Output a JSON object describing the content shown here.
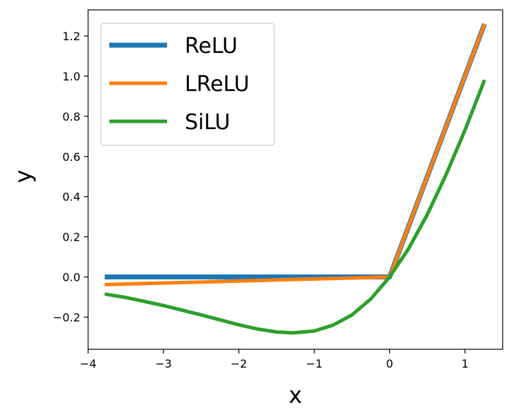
{
  "chart_data": {
    "type": "line",
    "xlabel": "x",
    "ylabel": "y",
    "xlim": [
      -4,
      1.5
    ],
    "ylim": [
      -0.36,
      1.33
    ],
    "x_ticks": [
      -4,
      -3,
      -2,
      -1,
      0,
      1
    ],
    "x_tick_labels": [
      "−4",
      "−3",
      "−2",
      "−1",
      "0",
      "1"
    ],
    "y_ticks": [
      -0.2,
      0.0,
      0.2,
      0.4,
      0.6,
      0.8,
      1.0,
      1.2
    ],
    "y_tick_labels": [
      "−0.2",
      "0.0",
      "0.2",
      "0.4",
      "0.6",
      "0.8",
      "1.0",
      "1.2"
    ],
    "grid": false,
    "legend_position": "top-left",
    "series": [
      {
        "name": "ReLU",
        "color": "#1f77b4",
        "x": [
          -3.78,
          -3.5,
          -3.0,
          -2.5,
          -2.0,
          -1.5,
          -1.0,
          -0.5,
          0.0,
          0.25,
          0.5,
          0.75,
          1.0,
          1.26
        ],
        "y": [
          0.0,
          0.0,
          0.0,
          0.0,
          0.0,
          0.0,
          0.0,
          0.0,
          0.0,
          0.25,
          0.5,
          0.75,
          1.0,
          1.26
        ]
      },
      {
        "name": "LReLU",
        "color": "#ff7f0e",
        "x": [
          -3.78,
          -3.5,
          -3.0,
          -2.5,
          -2.0,
          -1.5,
          -1.0,
          -0.5,
          0.0,
          0.25,
          0.5,
          0.75,
          1.0,
          1.26
        ],
        "y": [
          -0.038,
          -0.035,
          -0.03,
          -0.025,
          -0.02,
          -0.015,
          -0.01,
          -0.005,
          0.0,
          0.25,
          0.5,
          0.75,
          1.0,
          1.26
        ]
      },
      {
        "name": "SiLU",
        "color": "#2ca02c",
        "x": [
          -3.78,
          -3.5,
          -3.0,
          -2.5,
          -2.0,
          -1.75,
          -1.5,
          -1.28,
          -1.0,
          -0.75,
          -0.5,
          -0.25,
          0.0,
          0.25,
          0.5,
          0.75,
          1.0,
          1.26
        ],
        "y": [
          -0.085,
          -0.102,
          -0.142,
          -0.189,
          -0.238,
          -0.259,
          -0.274,
          -0.278,
          -0.269,
          -0.24,
          -0.189,
          -0.11,
          0.0,
          0.14,
          0.311,
          0.51,
          0.731,
          0.981
        ]
      }
    ]
  }
}
